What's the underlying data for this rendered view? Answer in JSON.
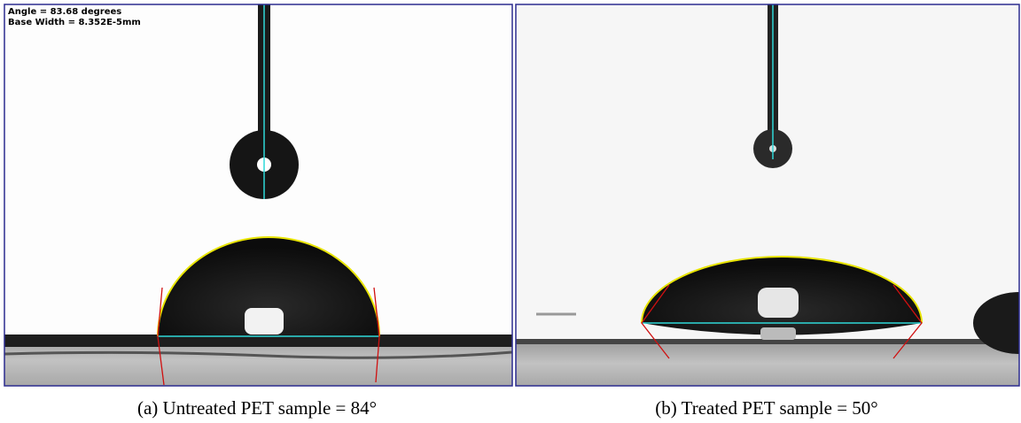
{
  "panel_a": {
    "overlay": [
      "Angle = 83.68 degrees",
      "Base Width = 8.352E-5mm"
    ],
    "caption": "(a) Untreated PET sample = 84°"
  },
  "panel_b": {
    "caption": "(b) Treated PET sample = 50°"
  }
}
